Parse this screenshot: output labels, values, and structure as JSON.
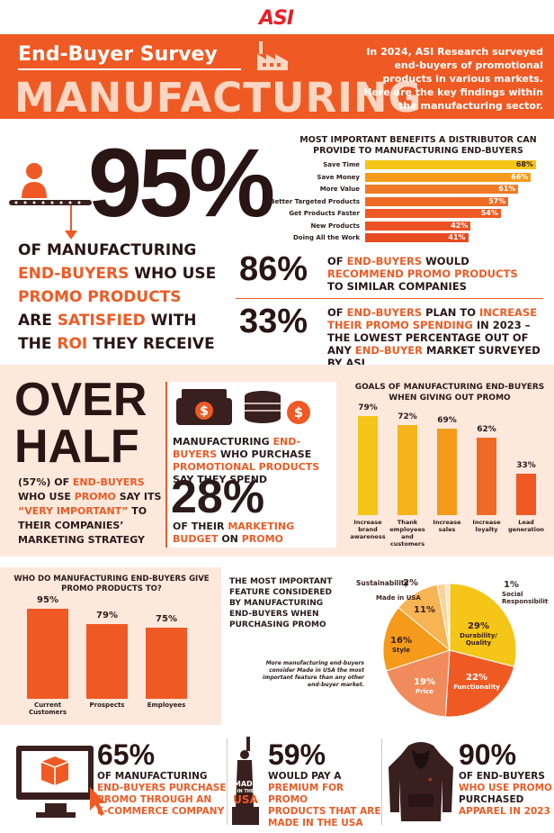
{
  "logo": "ASI",
  "banner": {
    "title": "End-Buyer Survey",
    "sector": "MANUFACTURING",
    "desc": "In 2024, ASI Research surveyed end-buyers of promotional products in various markets. Here are the key findings within the manufacturing sector."
  },
  "hero": {
    "value": "95%",
    "lines": [
      [
        "OF MANUFACTURING",
        ""
      ],
      [
        "END-BUYERS",
        " WHO USE"
      ],
      [
        "PROMO PRODUCTS",
        ""
      ],
      [
        "ARE ",
        "SATISFIED",
        " WITH"
      ],
      [
        "THE ",
        "ROI",
        " THEY RECEIVE"
      ]
    ]
  },
  "benefits": {
    "title": "MOST IMPORTANT BENEFITS A DISTRIBUTOR CAN PROVIDE TO MANUFACTURING END-BUYERS",
    "items": [
      {
        "label": "Save Time",
        "value": 68,
        "text": "68%",
        "color": "#f5c518"
      },
      {
        "label": "Save Money",
        "value": 66,
        "text": "66%",
        "color": "#f59a1b"
      },
      {
        "label": "More Value",
        "value": 61,
        "text": "61%",
        "color": "#ef7a24"
      },
      {
        "label": "Better Targeted Products",
        "value": 57,
        "text": "57%",
        "color": "#ef6a24"
      },
      {
        "label": "Get Products Faster",
        "value": 54,
        "text": "54%",
        "color": "#ef5a24"
      },
      {
        "label": "New Products",
        "value": 42,
        "text": "42%",
        "color": "#ec5224"
      },
      {
        "label": "Doing All the Work",
        "value": 41,
        "text": "41%",
        "color": "#e84a22"
      }
    ]
  },
  "stat86": {
    "value": "86%",
    "p1": "OF ",
    "p2": "END-BUYERS",
    " p3": "",
    "p3x": " WOULD",
    "p4": "RECOMMEND PROMO PRODUCTS",
    "p5": "TO SIMILAR COMPANIES"
  },
  "stat33": {
    "value": "33%",
    "p1": "OF ",
    "p2": "END-BUYERS",
    "p3": " PLAN TO ",
    "p4": "INCREASE THEIR PROMO SPENDING",
    "p5": " IN 2023 – THE LOWEST PERCENTAGE OUT OF ANY ",
    "p6": "END-BUYER",
    "p7": " MARKET SURVEYED BY ASI"
  },
  "overhalf": {
    "title1": "OVER",
    "title2": "HALF",
    "p1": "(57%) OF ",
    "p2": "END-BUYERS",
    "p3": " WHO USE ",
    "p4": "PROMO",
    "p5": " SAY ITS ",
    "p6": "“VERY IMPORTANT”",
    "p7": " TO THEIR COMPANIES’ MARKETING STRATEGY"
  },
  "budget": {
    "p1": "MANUFACTURING ",
    "p2": "END-BUYERS",
    "p3": " WHO PURCHASE ",
    "p4": "PROMOTIONAL PRODUCTS",
    "p5": " SAY THEY SPEND",
    "value": "28%",
    "q1": "OF THEIR ",
    "q2": "MARKETING BUDGET",
    "q3": " ON ",
    "q4": "PROMO"
  },
  "goals": {
    "title": "GOALS OF MANUFACTURING END-BUYERS WHEN GIVING OUT PROMO",
    "items": [
      {
        "label": "Increase brand awareness",
        "value": 79,
        "text": "79%",
        "color": "#f5c518"
      },
      {
        "label": "Thank employees and customers",
        "value": 72,
        "text": "72%",
        "color": "#f5b41b"
      },
      {
        "label": "Increase sales",
        "value": 69,
        "text": "69%",
        "color": "#f59a1b"
      },
      {
        "label": "Increase loyalty",
        "value": 62,
        "text": "62%",
        "color": "#ef6a24"
      },
      {
        "label": "Lead generation",
        "value": 33,
        "text": "33%",
        "color": "#ef5a24"
      }
    ]
  },
  "who": {
    "title": "WHO DO MANUFACTURING END-BUYERS GIVE PROMO PRODUCTS TO?",
    "items": [
      {
        "label": "Current Customers",
        "value": 95,
        "text": "95%"
      },
      {
        "label": "Prospects",
        "value": 79,
        "text": "79%"
      },
      {
        "label": "Employees",
        "value": 75,
        "text": "75%"
      }
    ]
  },
  "feature": {
    "title": "THE MOST IMPORTANT FEATURE CONSIDERED BY MANUFACTURING END-BUYERS WHEN PURCHASING PROMO",
    "note": "More manufacturing end-buyers consider Made in USA the most important feature than any other end-buyer market.",
    "slices": [
      {
        "label": "Durability/ Quality",
        "value": 29,
        "text": "29%",
        "color": "#f5c518"
      },
      {
        "label": "Functionality",
        "value": 22,
        "text": "22%",
        "color": "#ef5a24"
      },
      {
        "label": "Price",
        "value": 19,
        "text": "19%",
        "color": "#f28b5c"
      },
      {
        "label": "Style",
        "value": 16,
        "text": "16%",
        "color": "#f59a1b"
      },
      {
        "label": "Made in USA",
        "value": 11,
        "text": "11%",
        "color": "#f7b454"
      },
      {
        "label": "Sustainability",
        "value": 2,
        "text": "2%",
        "color": "#f9d49a"
      },
      {
        "label": "Social Responsibility",
        "value": 1,
        "text": "1%",
        "color": "#fbe3c2"
      }
    ]
  },
  "bottom": [
    {
      "value": "65%",
      "lines": [
        "OF MANUFACTURING",
        "END-BUYERS PURCHASE",
        "PROMO THROUGH AN",
        "E-COMMERCE COMPANY"
      ]
    },
    {
      "value": "59%",
      "lines": [
        "WOULD PAY A",
        "PREMIUM FOR PROMO",
        "PRODUCTS THAT ARE",
        "MADE IN THE USA"
      ]
    },
    {
      "value": "90%",
      "lines": [
        "OF END-BUYERS",
        "WHO USE PROMO",
        "PURCHASED",
        "APPAREL IN 2023"
      ]
    }
  ],
  "usa_badge": {
    "top": "MADE",
    "mid": "IN THE",
    "bottom": "USA"
  }
}
